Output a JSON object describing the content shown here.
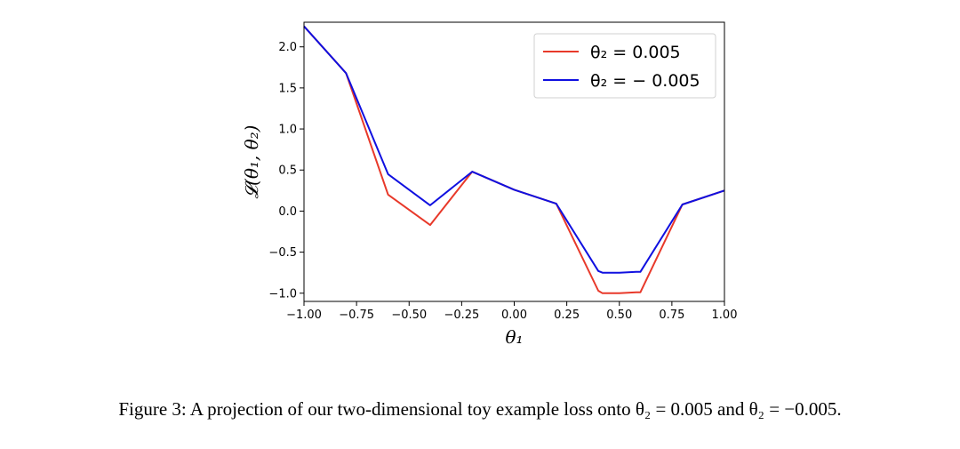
{
  "chart_data": {
    "type": "line",
    "xlabel": "θ₁",
    "ylabel": "𝓛(θ₁, θ₂)",
    "xlim": [
      -1.0,
      1.0
    ],
    "ylim": [
      -1.1,
      2.3
    ],
    "grid": false,
    "legend_position": "top-right",
    "x_ticks": [
      -1.0,
      -0.75,
      -0.5,
      -0.25,
      0.0,
      0.25,
      0.5,
      0.75,
      1.0
    ],
    "x_tick_labels": [
      "−1.00",
      "−0.75",
      "−0.50",
      "−0.25",
      "0.00",
      "0.25",
      "0.50",
      "0.75",
      "1.00"
    ],
    "y_ticks": [
      -1.0,
      -0.5,
      0.0,
      0.5,
      1.0,
      1.5,
      2.0
    ],
    "y_tick_labels": [
      "−1.0",
      "−0.5",
      "0.0",
      "0.5",
      "1.0",
      "1.5",
      "2.0"
    ],
    "series": [
      {
        "name": "θ₂ = 0.005",
        "color": "#e8392a",
        "x": [
          -1.0,
          -0.8,
          -0.6,
          -0.4,
          -0.2,
          0.0,
          0.2,
          0.4,
          0.42,
          0.5,
          0.58,
          0.6,
          0.8,
          1.0
        ],
        "y": [
          2.25,
          1.68,
          0.2,
          -0.17,
          0.48,
          0.26,
          0.09,
          -0.97,
          -1.0,
          -1.0,
          -0.99,
          -0.99,
          0.08,
          0.25
        ]
      },
      {
        "name": "θ₂ = − 0.005",
        "color": "#1010e0",
        "x": [
          -1.0,
          -0.8,
          -0.6,
          -0.4,
          -0.2,
          0.0,
          0.2,
          0.4,
          0.42,
          0.5,
          0.58,
          0.6,
          0.8,
          1.0
        ],
        "y": [
          2.25,
          1.68,
          0.45,
          0.07,
          0.48,
          0.26,
          0.09,
          -0.73,
          -0.75,
          -0.75,
          -0.74,
          -0.74,
          0.08,
          0.25
        ]
      }
    ]
  },
  "caption": "Figure 3: A projection of our two-dimensional toy example loss onto θ₂ = 0.005 and θ₂ = −0.005."
}
